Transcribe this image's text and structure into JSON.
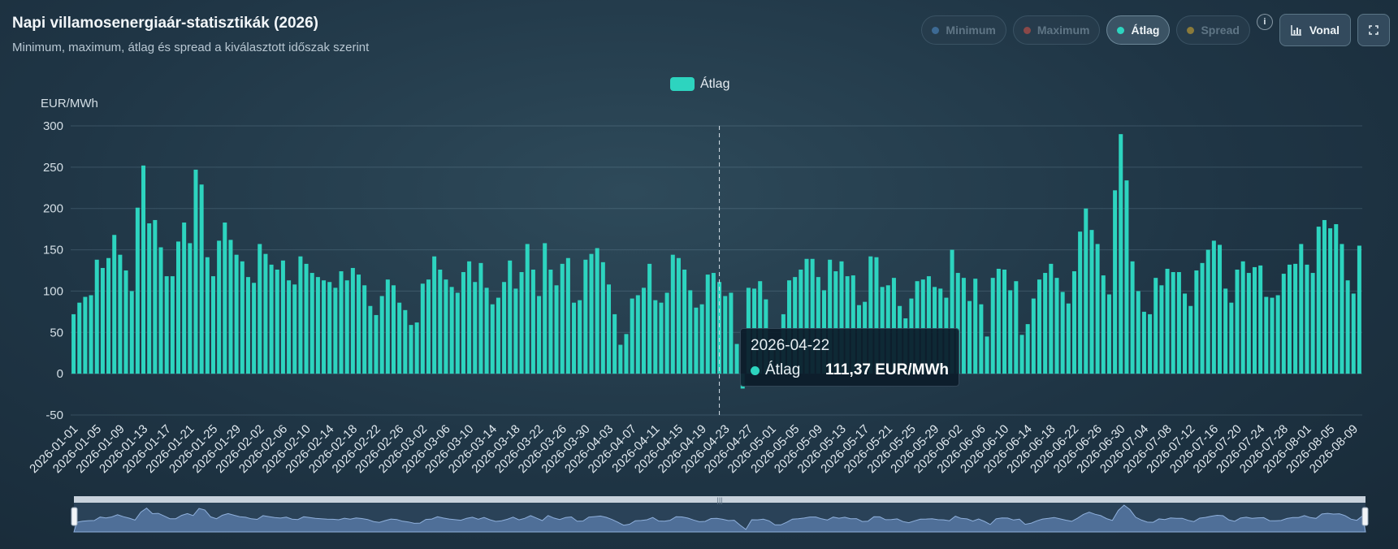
{
  "header": {
    "title": "Napi villamosenergiaár-statisztikák (2026)",
    "subtitle": "Minimum, maximum, átlag és spread a kiválasztott időszak szerint"
  },
  "toggles": [
    {
      "label": "Minimum",
      "color": "#3d6a94",
      "active": false
    },
    {
      "label": "Maximum",
      "color": "#8a4848",
      "active": false
    },
    {
      "label": "Átlag",
      "color": "#2dd4bf",
      "active": true
    },
    {
      "label": "Spread",
      "color": "#8a7a3a",
      "active": false
    }
  ],
  "info_label": "i",
  "type_button": {
    "label": "Vonal",
    "icon": "bar-chart-icon"
  },
  "fullscreen_button": {
    "icon": "fullscreen-icon"
  },
  "tooltip": {
    "date": "2026-04-22",
    "series": "Átlag",
    "value": "111,37 EUR/MWh"
  },
  "chart_data": {
    "type": "bar",
    "ylabel": "EUR/MWh",
    "ylim": [
      -50,
      300
    ],
    "yticks": [
      300,
      250,
      200,
      150,
      100,
      50,
      0,
      -50
    ],
    "grid": true,
    "legend": {
      "position": "top-center",
      "entries": [
        "Átlag"
      ]
    },
    "series": [
      {
        "name": "Átlag",
        "color": "#2dd4bf"
      }
    ],
    "start_date": "2026-01-01",
    "tick_every_days": 4,
    "highlight_date": "2026-04-22",
    "values": [
      72,
      86,
      93,
      95,
      138,
      128,
      140,
      168,
      144,
      125,
      100,
      201,
      252,
      182,
      186,
      153,
      118,
      118,
      160,
      183,
      158,
      247,
      229,
      141,
      118,
      161,
      183,
      162,
      144,
      136,
      117,
      110,
      157,
      145,
      132,
      126,
      137,
      113,
      108,
      142,
      133,
      122,
      117,
      113,
      111,
      104,
      124,
      113,
      128,
      120,
      107,
      82,
      71,
      94,
      114,
      107,
      86,
      77,
      59,
      62,
      109,
      114,
      142,
      126,
      114,
      105,
      98,
      123,
      136,
      111,
      134,
      104,
      84,
      92,
      111,
      137,
      103,
      123,
      157,
      126,
      94,
      158,
      126,
      107,
      133,
      140,
      86,
      89,
      138,
      145,
      152,
      135,
      108,
      72,
      35,
      48,
      91,
      95,
      104,
      133,
      89,
      86,
      98,
      144,
      140,
      126,
      101,
      80,
      84,
      120,
      122,
      111,
      94,
      98,
      36,
      -18,
      104,
      103,
      112,
      90,
      40,
      40,
      72,
      113,
      117,
      126,
      139,
      139,
      117,
      101,
      138,
      124,
      136,
      118,
      119,
      83,
      87,
      142,
      141,
      105,
      107,
      116,
      82,
      67,
      91,
      112,
      114,
      118,
      105,
      103,
      92,
      150,
      122,
      116,
      88,
      115,
      84,
      45,
      116,
      127,
      126,
      101,
      112,
      47,
      60,
      91,
      114,
      122,
      133,
      116,
      99,
      85,
      124,
      172,
      200,
      174,
      157,
      119,
      96,
      222,
      290,
      234,
      136,
      100,
      75,
      72,
      116,
      107,
      127,
      123,
      123,
      97,
      82,
      125,
      134,
      150,
      161,
      156,
      103,
      86,
      126,
      136,
      122,
      129,
      131,
      93,
      92,
      95,
      121,
      132,
      133,
      157,
      132,
      122,
      178,
      186,
      176,
      181,
      157,
      113,
      97,
      155
    ]
  }
}
